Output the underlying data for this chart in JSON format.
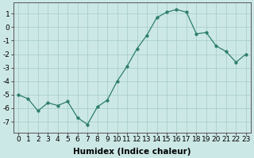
{
  "x": [
    0,
    1,
    2,
    3,
    4,
    5,
    6,
    7,
    8,
    9,
    10,
    11,
    12,
    13,
    14,
    15,
    16,
    17,
    18,
    19,
    20,
    21,
    22,
    23
  ],
  "y": [
    -5.0,
    -5.3,
    -6.2,
    -5.6,
    -5.8,
    -5.5,
    -6.7,
    -7.2,
    -5.9,
    -5.4,
    -4.0,
    -2.9,
    -1.6,
    -0.6,
    0.7,
    1.1,
    1.3,
    1.1,
    -0.5,
    -0.4,
    -1.4,
    -1.8,
    -2.6,
    -2.0
  ],
  "xlabel": "Humidex (Indice chaleur)",
  "ylim": [
    -7.8,
    1.8
  ],
  "xlim": [
    -0.5,
    23.5
  ],
  "yticks": [
    1,
    0,
    -1,
    -2,
    -3,
    -4,
    -5,
    -6,
    -7
  ],
  "xticks": [
    0,
    1,
    2,
    3,
    4,
    5,
    6,
    7,
    8,
    9,
    10,
    11,
    12,
    13,
    14,
    15,
    16,
    17,
    18,
    19,
    20,
    21,
    22,
    23
  ],
  "line_color": "#2d7d6e",
  "marker": "o",
  "marker_size": 2.5,
  "bg_color": "#cce8e6",
  "grid_color": "#aacfcc",
  "xlabel_fontsize": 7.5,
  "tick_fontsize": 6.5
}
